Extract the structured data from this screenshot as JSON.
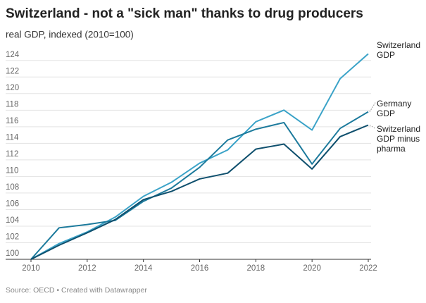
{
  "chart_data": {
    "type": "line",
    "title": "Switzerland - not a \"sick man\" thanks to drug producers",
    "subtitle": "real GDP, indexed (2010=100)",
    "source": "Source: OECD • Created with Datawrapper",
    "x": [
      2010,
      2011,
      2012,
      2013,
      2014,
      2015,
      2016,
      2017,
      2018,
      2019,
      2020,
      2021,
      2022
    ],
    "xlim": [
      2010,
      2022
    ],
    "xticks": [
      2010,
      2012,
      2014,
      2016,
      2018,
      2020,
      2022
    ],
    "ylim": [
      100,
      125
    ],
    "yticks": [
      100,
      102,
      104,
      106,
      108,
      110,
      112,
      114,
      116,
      118,
      120,
      122,
      124
    ],
    "grid": true,
    "series": [
      {
        "name": "Switzerland GDP",
        "color": "#3ba3c8",
        "values": [
          100,
          101.9,
          103.3,
          105.1,
          107.6,
          109.3,
          111.6,
          113.2,
          116.6,
          118.0,
          115.6,
          121.8,
          124.8
        ]
      },
      {
        "name": "Germany GDP",
        "color": "#1c7a9c",
        "values": [
          100,
          103.8,
          104.2,
          104.7,
          107.0,
          108.6,
          111.1,
          114.4,
          115.7,
          116.5,
          111.5,
          115.8,
          117.8
        ]
      },
      {
        "name": "Switzerland GDP minus pharma",
        "color": "#0e4f6d",
        "values": [
          100,
          101.7,
          103.2,
          104.8,
          107.2,
          108.2,
          109.7,
          110.4,
          113.3,
          113.9,
          110.9,
          114.8,
          116.2
        ]
      }
    ]
  }
}
